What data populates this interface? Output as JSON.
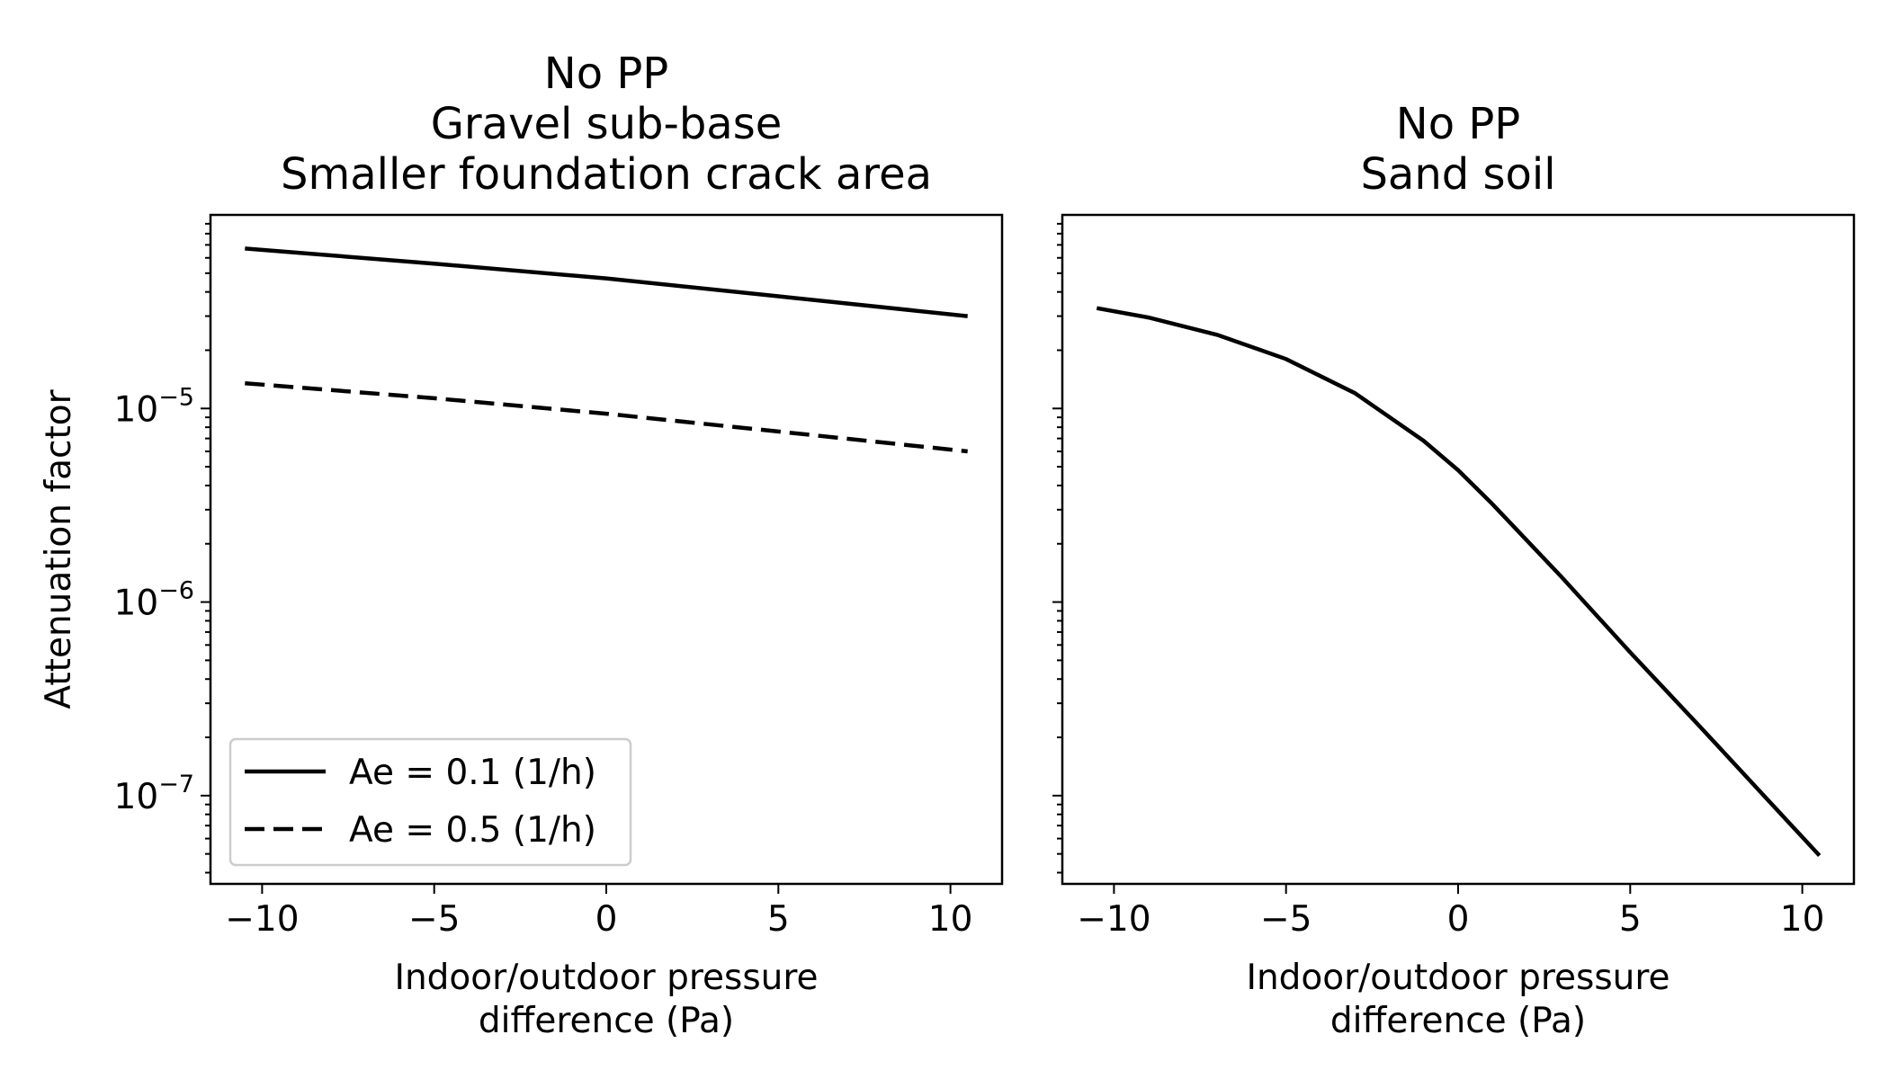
{
  "chart_data": [
    {
      "type": "line",
      "title": [
        "No PP",
        "Gravel sub-base",
        "Smaller foundation crack area"
      ],
      "xlabel": [
        "Indoor/outdoor pressure",
        "difference (Pa)"
      ],
      "ylabel": "Attenuation factor",
      "yscale": "log",
      "xlim": [
        -11.5,
        11.5
      ],
      "ylim": [
        3.5e-08,
        0.0001
      ],
      "xticks": [
        -10,
        -5,
        0,
        5,
        10
      ],
      "xtick_labels": [
        "−10",
        "−5",
        "0",
        "5",
        "10"
      ],
      "yticks": [
        1e-05,
        1e-06,
        1e-07
      ],
      "ytick_labels": [
        {
          "base": "10",
          "exp": "−5"
        },
        {
          "base": "10",
          "exp": "−6"
        },
        {
          "base": "10",
          "exp": "−7"
        }
      ],
      "legend_position": "lower-left",
      "grid": false,
      "series": [
        {
          "name": "Ae = 0.1 (1/h)",
          "style": "solid",
          "x": [
            -10.5,
            -5,
            0,
            5,
            10.5
          ],
          "y": [
            6.7e-05,
            5.6e-05,
            4.7e-05,
            3.8e-05,
            3e-05
          ]
        },
        {
          "name": "Ae = 0.5 (1/h)",
          "style": "dashed",
          "x": [
            -10.5,
            -5,
            0,
            5,
            10.5
          ],
          "y": [
            1.35e-05,
            1.13e-05,
            9.4e-06,
            7.6e-06,
            6e-06
          ]
        }
      ]
    },
    {
      "type": "line",
      "title": [
        "No PP",
        "Sand soil"
      ],
      "xlabel": [
        "Indoor/outdoor pressure",
        "difference (Pa)"
      ],
      "yscale": "log",
      "xlim": [
        -11.5,
        11.5
      ],
      "ylim": [
        3.5e-08,
        0.0001
      ],
      "xticks": [
        -10,
        -5,
        0,
        5,
        10
      ],
      "xtick_labels": [
        "−10",
        "−5",
        "0",
        "5",
        "10"
      ],
      "yticks": [
        1e-05,
        1e-06,
        1e-07
      ],
      "grid": false,
      "series": [
        {
          "style": "solid",
          "x": [
            -10.5,
            -9,
            -7,
            -5,
            -3,
            -1,
            0,
            1,
            3,
            5,
            7,
            9,
            10.5
          ],
          "y": [
            3.3e-05,
            2.95e-05,
            2.4e-05,
            1.8e-05,
            1.2e-05,
            6.8e-06,
            4.8e-06,
            3.2e-06,
            1.35e-06,
            5.5e-07,
            2.3e-07,
            9.5e-08,
            4.9e-08
          ]
        }
      ]
    }
  ]
}
